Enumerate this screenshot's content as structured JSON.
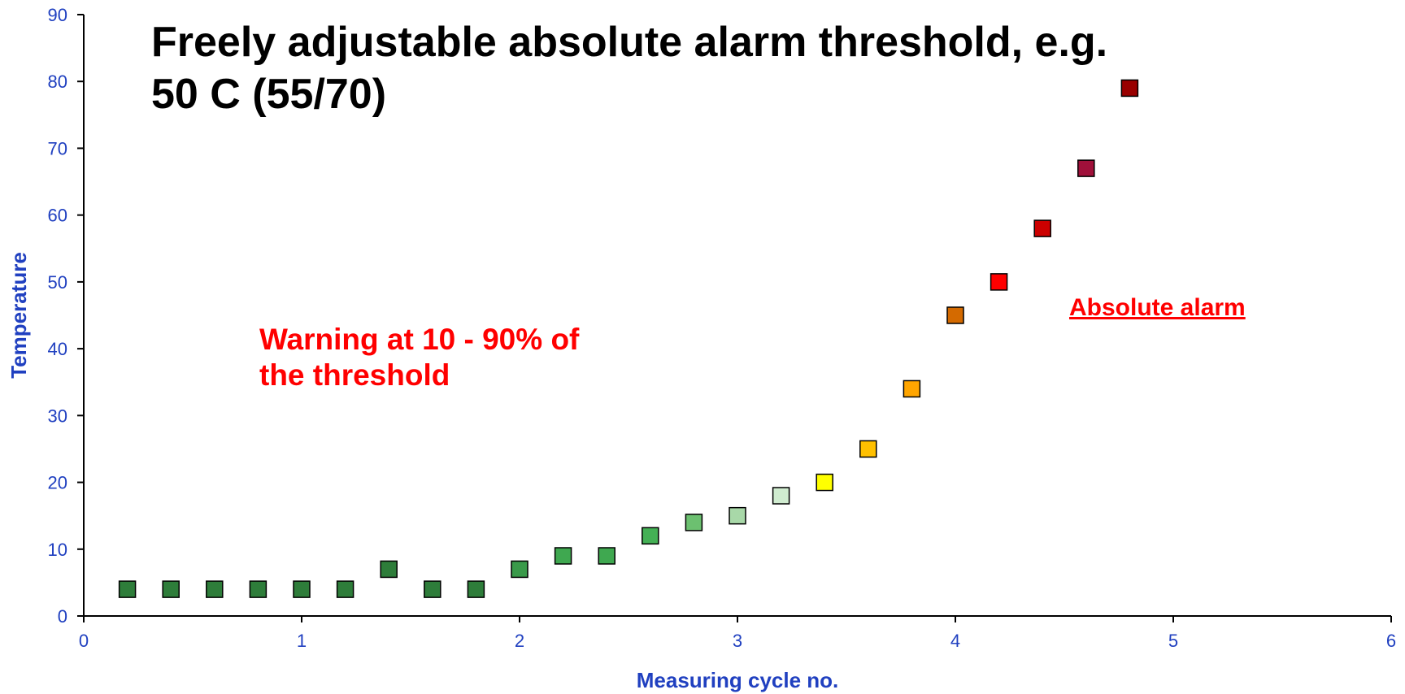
{
  "chart_data": {
    "type": "scatter",
    "title": [
      "Freely adjustable absolute alarm threshold, e.g.",
      "50 C (55/70)"
    ],
    "xlabel": "Measuring cycle no.",
    "ylabel": "Temperature",
    "annotations": [
      {
        "lines": [
          "Warning at 10 - 90% of",
          "the threshold"
        ],
        "color": "#ff0000"
      },
      {
        "lines": [
          "Absolute alarm"
        ],
        "color": "#ff0000",
        "underline": true
      }
    ],
    "x": [
      0.2,
      0.4,
      0.6,
      0.8,
      1.0,
      1.2,
      1.4,
      1.6,
      1.8,
      2.0,
      2.2,
      2.4,
      2.6,
      2.8,
      3.0,
      3.2,
      3.4,
      3.6,
      3.8,
      4.0,
      4.2,
      4.4,
      4.6,
      4.8
    ],
    "values": [
      4,
      4,
      4,
      4,
      4,
      4,
      7,
      4,
      4,
      7,
      9,
      9,
      12,
      14,
      15,
      18,
      20,
      25,
      34,
      45,
      50,
      58,
      67,
      79
    ],
    "colors": [
      "#2e7d3a",
      "#2e7d3a",
      "#2e7d3a",
      "#2e7d3a",
      "#2e7d3a",
      "#2e7d3a",
      "#2e7d3a",
      "#2e7d3a",
      "#2e7d3a",
      "#3a9a4a",
      "#3fa850",
      "#3fa850",
      "#44b055",
      "#6cc070",
      "#a8d8a8",
      "#d0ecd0",
      "#ffff00",
      "#ffc000",
      "#ffa500",
      "#d46a00",
      "#ff0000",
      "#cc0000",
      "#a0103a",
      "#990000"
    ],
    "xlim": [
      0,
      6
    ],
    "xticks": [
      0,
      1,
      2,
      3,
      4,
      5,
      6
    ],
    "ylim": [
      0,
      90
    ],
    "yticks": [
      0,
      10,
      20,
      30,
      40,
      50,
      60,
      70,
      80,
      90
    ],
    "axis_color": "#2040c0",
    "grid": false
  }
}
